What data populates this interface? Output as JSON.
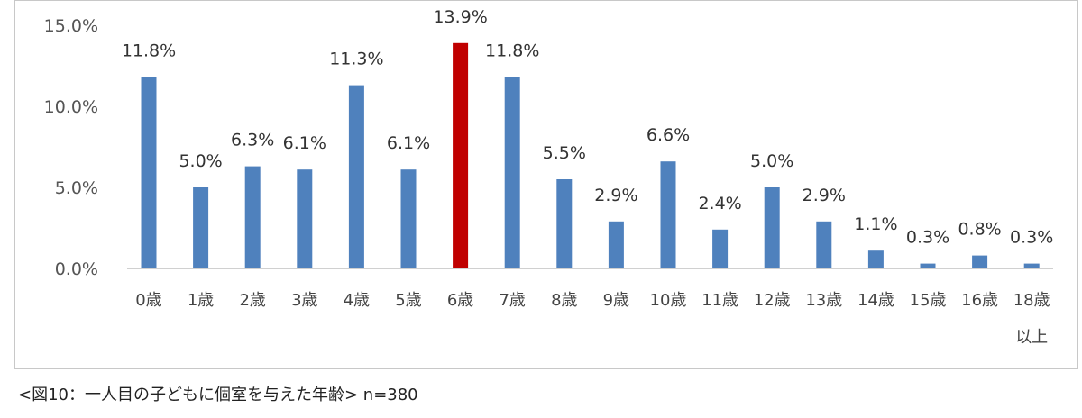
{
  "chart_data": {
    "type": "bar",
    "title": "",
    "xlabel": "",
    "ylabel": "",
    "ylim": [
      0,
      15
    ],
    "yticks": [
      "0.0%",
      "5.0%",
      "10.0%",
      "15.0%"
    ],
    "ytick_values": [
      0,
      5,
      10,
      15
    ],
    "grid": false,
    "categories": [
      "0歳",
      "1歳",
      "2歳",
      "3歳",
      "4歳",
      "5歳",
      "6歳",
      "7歳",
      "8歳",
      "9歳",
      "10歳",
      "11歳",
      "12歳",
      "13歳",
      "14歳",
      "15歳",
      "16歳",
      "18歳\n以上"
    ],
    "values": [
      11.8,
      5.0,
      6.3,
      6.1,
      11.3,
      6.1,
      13.9,
      11.8,
      5.5,
      2.9,
      6.6,
      2.4,
      5.0,
      2.9,
      1.1,
      0.3,
      0.8,
      0.3
    ],
    "data_labels": [
      "11.8%",
      "5.0%",
      "6.3%",
      "6.1%",
      "11.3%",
      "6.1%",
      "13.9%",
      "11.8%",
      "5.5%",
      "2.9%",
      "6.6%",
      "2.4%",
      "5.0%",
      "2.9%",
      "1.1%",
      "0.3%",
      "0.8%",
      "0.3%"
    ],
    "highlight_index": 6,
    "colors": {
      "bar": "#4f81bd",
      "highlight": "#c00000",
      "axis": "#d0d0d0"
    }
  },
  "caption": "<図10：一人目の子どもに個室を与えた年齢> n=380"
}
